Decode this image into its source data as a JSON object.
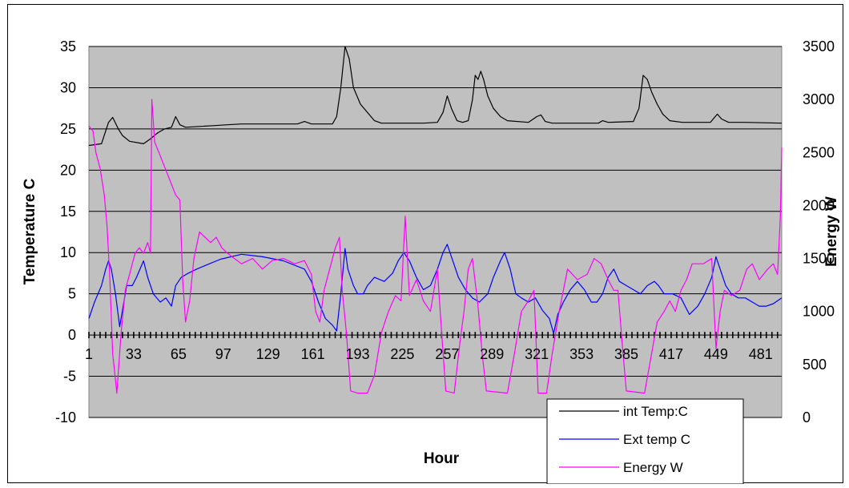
{
  "chart_data": {
    "type": "line",
    "title": "",
    "xlabel": "Hour",
    "ylabel": "Temperature C",
    "y2label": "Energy W",
    "xlim": [
      1,
      496
    ],
    "ylim": [
      -10,
      35
    ],
    "y2lim": [
      0,
      3500
    ],
    "x_ticks": [
      "1",
      "33",
      "65",
      "97",
      "129",
      "161",
      "193",
      "225",
      "257",
      "289",
      "321",
      "353",
      "385",
      "417",
      "449",
      "481"
    ],
    "y_ticks": [
      "35",
      "30",
      "25",
      "20",
      "15",
      "10",
      "5",
      "0",
      "-5",
      "-10"
    ],
    "y2_ticks": [
      "3500",
      "3000",
      "2500",
      "2000",
      "1500",
      "1000",
      "500",
      "0"
    ],
    "grid": true,
    "plot_background": "#c0c0c0",
    "legend_position": "bottom-right",
    "series": [
      {
        "name": "int Temp:C",
        "axis": "left",
        "color": "#000000",
        "points": [
          [
            1,
            23.0
          ],
          [
            10,
            23.2
          ],
          [
            15,
            25.8
          ],
          [
            18,
            26.4
          ],
          [
            22,
            25.0
          ],
          [
            25,
            24.2
          ],
          [
            30,
            23.5
          ],
          [
            40,
            23.2
          ],
          [
            45,
            23.8
          ],
          [
            50,
            24.5
          ],
          [
            55,
            25.0
          ],
          [
            60,
            25.2
          ],
          [
            63,
            26.5
          ],
          [
            66,
            25.5
          ],
          [
            70,
            25.2
          ],
          [
            80,
            25.3
          ],
          [
            90,
            25.4
          ],
          [
            100,
            25.5
          ],
          [
            110,
            25.6
          ],
          [
            125,
            25.6
          ],
          [
            150,
            25.6
          ],
          [
            155,
            25.9
          ],
          [
            160,
            25.6
          ],
          [
            175,
            25.6
          ],
          [
            178,
            26.5
          ],
          [
            181,
            30.0
          ],
          [
            184,
            35.0
          ],
          [
            187,
            33.5
          ],
          [
            190,
            30.0
          ],
          [
            195,
            28.0
          ],
          [
            200,
            27.0
          ],
          [
            205,
            26.0
          ],
          [
            210,
            25.7
          ],
          [
            240,
            25.7
          ],
          [
            250,
            25.8
          ],
          [
            254,
            27.0
          ],
          [
            257,
            29.0
          ],
          [
            260,
            27.5
          ],
          [
            264,
            26.0
          ],
          [
            268,
            25.8
          ],
          [
            272,
            26.0
          ],
          [
            275,
            28.5
          ],
          [
            277,
            31.5
          ],
          [
            279,
            31.0
          ],
          [
            281,
            32.0
          ],
          [
            283,
            31.0
          ],
          [
            286,
            29.0
          ],
          [
            290,
            27.5
          ],
          [
            295,
            26.5
          ],
          [
            300,
            26.0
          ],
          [
            315,
            25.8
          ],
          [
            321,
            26.5
          ],
          [
            324,
            26.7
          ],
          [
            327,
            25.9
          ],
          [
            332,
            25.7
          ],
          [
            365,
            25.7
          ],
          [
            368,
            26.0
          ],
          [
            372,
            25.8
          ],
          [
            390,
            25.9
          ],
          [
            394,
            27.5
          ],
          [
            397,
            31.5
          ],
          [
            400,
            31.0
          ],
          [
            403,
            29.5
          ],
          [
            407,
            28.0
          ],
          [
            411,
            26.8
          ],
          [
            416,
            26.0
          ],
          [
            425,
            25.8
          ],
          [
            445,
            25.8
          ],
          [
            450,
            26.8
          ],
          [
            453,
            26.2
          ],
          [
            458,
            25.8
          ],
          [
            470,
            25.8
          ],
          [
            496,
            25.7
          ]
        ]
      },
      {
        "name": "Ext temp C",
        "axis": "left",
        "color": "#0000ff",
        "points": [
          [
            1,
            2.0
          ],
          [
            5,
            4.0
          ],
          [
            10,
            6.0
          ],
          [
            13,
            8.0
          ],
          [
            15,
            9.0
          ],
          [
            17,
            8.0
          ],
          [
            20,
            5.0
          ],
          [
            23,
            1.0
          ],
          [
            25,
            3.0
          ],
          [
            28,
            6.0
          ],
          [
            32,
            6.0
          ],
          [
            35,
            7.0
          ],
          [
            40,
            9.0
          ],
          [
            43,
            7.0
          ],
          [
            47,
            5.0
          ],
          [
            52,
            4.0
          ],
          [
            56,
            4.5
          ],
          [
            60,
            3.5
          ],
          [
            63,
            6.0
          ],
          [
            67,
            7.0
          ],
          [
            72,
            7.5
          ],
          [
            78,
            8.0
          ],
          [
            85,
            8.5
          ],
          [
            95,
            9.2
          ],
          [
            110,
            9.8
          ],
          [
            125,
            9.5
          ],
          [
            140,
            9.0
          ],
          [
            155,
            8.0
          ],
          [
            160,
            6.5
          ],
          [
            165,
            4.0
          ],
          [
            170,
            2.0
          ],
          [
            175,
            1.2
          ],
          [
            178,
            0.5
          ],
          [
            181,
            5.0
          ],
          [
            184,
            10.5
          ],
          [
            186,
            8.0
          ],
          [
            190,
            6.0
          ],
          [
            193,
            5.0
          ],
          [
            197,
            5.0
          ],
          [
            200,
            6.0
          ],
          [
            205,
            7.0
          ],
          [
            212,
            6.5
          ],
          [
            218,
            7.5
          ],
          [
            222,
            9.0
          ],
          [
            226,
            10.0
          ],
          [
            230,
            9.0
          ],
          [
            235,
            7.0
          ],
          [
            240,
            5.5
          ],
          [
            245,
            6.0
          ],
          [
            250,
            8.0
          ],
          [
            254,
            10.0
          ],
          [
            257,
            11.0
          ],
          [
            260,
            9.5
          ],
          [
            265,
            7.0
          ],
          [
            270,
            5.5
          ],
          [
            275,
            4.5
          ],
          [
            280,
            4.0
          ],
          [
            286,
            5.0
          ],
          [
            290,
            7.0
          ],
          [
            295,
            9.0
          ],
          [
            298,
            10.0
          ],
          [
            302,
            8.0
          ],
          [
            306,
            5.0
          ],
          [
            310,
            4.5
          ],
          [
            315,
            4.0
          ],
          [
            320,
            4.5
          ],
          [
            325,
            3.0
          ],
          [
            330,
            2.0
          ],
          [
            333,
            0.2
          ],
          [
            336,
            2.5
          ],
          [
            340,
            4.0
          ],
          [
            345,
            5.5
          ],
          [
            350,
            6.5
          ],
          [
            355,
            5.5
          ],
          [
            360,
            4.0
          ],
          [
            364,
            4.0
          ],
          [
            368,
            5.0
          ],
          [
            372,
            7.0
          ],
          [
            376,
            8.0
          ],
          [
            380,
            6.5
          ],
          [
            385,
            6.0
          ],
          [
            390,
            5.5
          ],
          [
            395,
            5.0
          ],
          [
            400,
            6.0
          ],
          [
            405,
            6.5
          ],
          [
            408,
            6.0
          ],
          [
            412,
            5.0
          ],
          [
            418,
            5.0
          ],
          [
            424,
            4.5
          ],
          [
            430,
            2.5
          ],
          [
            436,
            3.5
          ],
          [
            441,
            5.0
          ],
          [
            446,
            7.0
          ],
          [
            449,
            9.5
          ],
          [
            452,
            8.0
          ],
          [
            456,
            6.0
          ],
          [
            460,
            5.0
          ],
          [
            465,
            4.5
          ],
          [
            470,
            4.5
          ],
          [
            475,
            4.0
          ],
          [
            480,
            3.5
          ],
          [
            485,
            3.5
          ],
          [
            490,
            3.8
          ],
          [
            496,
            4.5
          ]
        ]
      },
      {
        "name": "Energy W",
        "axis": "right",
        "color": "#ff00ff",
        "points": [
          [
            1,
            2750
          ],
          [
            4,
            2700
          ],
          [
            6,
            2500
          ],
          [
            9,
            2350
          ],
          [
            12,
            2100
          ],
          [
            14,
            1800
          ],
          [
            16,
            1300
          ],
          [
            18,
            600
          ],
          [
            21,
            230
          ],
          [
            24,
            800
          ],
          [
            27,
            1200
          ],
          [
            30,
            1350
          ],
          [
            34,
            1550
          ],
          [
            37,
            1600
          ],
          [
            40,
            1550
          ],
          [
            43,
            1650
          ],
          [
            45,
            1550
          ],
          [
            46,
            3000
          ],
          [
            48,
            2600
          ],
          [
            51,
            2500
          ],
          [
            54,
            2400
          ],
          [
            57,
            2300
          ],
          [
            60,
            2200
          ],
          [
            63,
            2100
          ],
          [
            66,
            2050
          ],
          [
            68,
            1300
          ],
          [
            70,
            900
          ],
          [
            73,
            1100
          ],
          [
            76,
            1500
          ],
          [
            80,
            1750
          ],
          [
            84,
            1700
          ],
          [
            88,
            1650
          ],
          [
            92,
            1700
          ],
          [
            96,
            1600
          ],
          [
            100,
            1550
          ],
          [
            105,
            1500
          ],
          [
            110,
            1450
          ],
          [
            118,
            1500
          ],
          [
            125,
            1400
          ],
          [
            132,
            1480
          ],
          [
            140,
            1500
          ],
          [
            148,
            1450
          ],
          [
            155,
            1480
          ],
          [
            160,
            1350
          ],
          [
            163,
            1000
          ],
          [
            166,
            900
          ],
          [
            169,
            1200
          ],
          [
            173,
            1400
          ],
          [
            177,
            1600
          ],
          [
            180,
            1700
          ],
          [
            182,
            1200
          ],
          [
            185,
            800
          ],
          [
            188,
            250
          ],
          [
            193,
            230
          ],
          [
            200,
            230
          ],
          [
            205,
            400
          ],
          [
            210,
            800
          ],
          [
            215,
            1000
          ],
          [
            220,
            1150
          ],
          [
            224,
            1100
          ],
          [
            227,
            1900
          ],
          [
            230,
            1150
          ],
          [
            235,
            1300
          ],
          [
            240,
            1100
          ],
          [
            245,
            1000
          ],
          [
            250,
            1400
          ],
          [
            253,
            800
          ],
          [
            256,
            250
          ],
          [
            262,
            230
          ],
          [
            266,
            700
          ],
          [
            269,
            1000
          ],
          [
            272,
            1400
          ],
          [
            275,
            1500
          ],
          [
            279,
            1050
          ],
          [
            282,
            600
          ],
          [
            285,
            250
          ],
          [
            300,
            230
          ],
          [
            305,
            600
          ],
          [
            310,
            1000
          ],
          [
            315,
            1100
          ],
          [
            319,
            1200
          ],
          [
            322,
            230
          ],
          [
            328,
            230
          ],
          [
            332,
            600
          ],
          [
            337,
            1000
          ],
          [
            343,
            1400
          ],
          [
            350,
            1300
          ],
          [
            357,
            1350
          ],
          [
            362,
            1500
          ],
          [
            367,
            1450
          ],
          [
            372,
            1300
          ],
          [
            376,
            1200
          ],
          [
            379,
            1200
          ],
          [
            382,
            700
          ],
          [
            385,
            250
          ],
          [
            398,
            230
          ],
          [
            403,
            600
          ],
          [
            407,
            900
          ],
          [
            412,
            1000
          ],
          [
            416,
            1100
          ],
          [
            420,
            1000
          ],
          [
            424,
            1200
          ],
          [
            428,
            1300
          ],
          [
            432,
            1450
          ],
          [
            440,
            1450
          ],
          [
            446,
            1500
          ],
          [
            449,
            650
          ],
          [
            452,
            1000
          ],
          [
            455,
            1200
          ],
          [
            460,
            1150
          ],
          [
            466,
            1200
          ],
          [
            471,
            1400
          ],
          [
            475,
            1450
          ],
          [
            480,
            1300
          ],
          [
            486,
            1400
          ],
          [
            490,
            1450
          ],
          [
            493,
            1350
          ],
          [
            495,
            1900
          ],
          [
            496,
            2550
          ]
        ]
      }
    ]
  }
}
